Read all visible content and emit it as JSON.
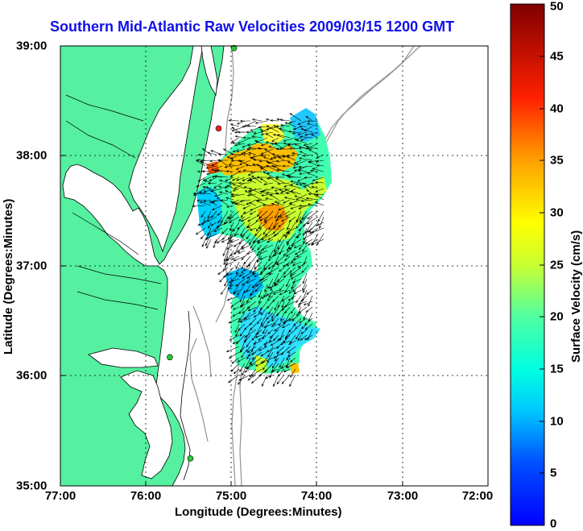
{
  "title": "Southern Mid-Atlantic Raw Velocities 2009/03/15 1200 GMT",
  "x_axis": {
    "label": "Longitude (Degrees:Minutes)",
    "ticks": [
      "77:00",
      "76:00",
      "75:00",
      "74:00",
      "73:00",
      "72:00"
    ]
  },
  "y_axis": {
    "label": "Latitude (Degrees:Minutes)",
    "ticks": [
      "39:00",
      "38:00",
      "37:00",
      "36:00",
      "35:00"
    ]
  },
  "colorbar": {
    "label": "Surface Velocity (cm/s)",
    "ticks": [
      "50",
      "45",
      "40",
      "35",
      "30",
      "25",
      "20",
      "15",
      "10",
      "5",
      "0"
    ],
    "min": 0,
    "max": 50,
    "colormap": "jet"
  },
  "colors": {
    "land": "#55f0a0",
    "water": "#ffffff",
    "bathymetry": "#999999",
    "title": "#1010e8",
    "station_green": "#22cc33",
    "station_red": "#ee2222"
  },
  "map_extent": {
    "lon_min": -77,
    "lon_max": -72,
    "lat_min": 35,
    "lat_max": 39
  },
  "stations": [
    {
      "lon": -74.97,
      "lat": 38.98,
      "status": "green"
    },
    {
      "lon": -75.15,
      "lat": 38.25,
      "status": "red"
    },
    {
      "lon": -75.72,
      "lat": 36.17,
      "status": "green"
    },
    {
      "lon": -75.48,
      "lat": 35.25,
      "status": "green"
    }
  ],
  "grid": true
}
